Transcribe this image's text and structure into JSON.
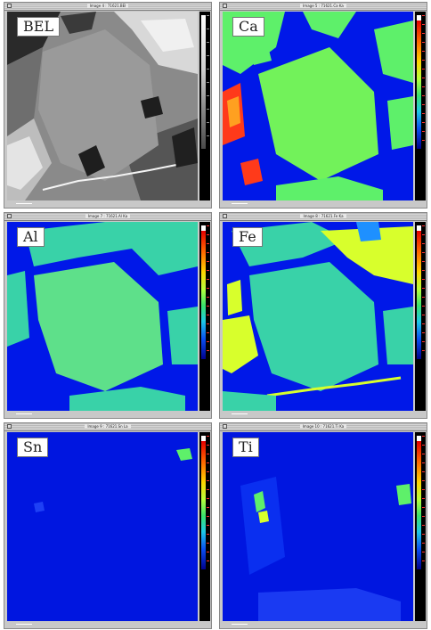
{
  "panels": [
    {
      "title": "Image 4 : 71621.BEI",
      "label": "BEL",
      "colormap": "gray"
    },
    {
      "title": "Image 5 : 71621.Ca Ka",
      "label": "Ca",
      "colormap": "color"
    },
    {
      "title": "Image 7 : 71621.Al Ka",
      "label": "Al",
      "colormap": "color"
    },
    {
      "title": "Image 8 : 71621.Fe Ka",
      "label": "Fe",
      "colormap": "color"
    },
    {
      "title": "Image 9 : 71621.Sn La",
      "label": "Sn",
      "colormap": "color"
    },
    {
      "title": "Image 10 : 71621.Ti Ka",
      "label": "Ti",
      "colormap": "color"
    }
  ],
  "colors": {
    "background_blue": "#0018e8",
    "mineral_green": "#5ef06a",
    "aluminum_cyan": "#39d2a8",
    "iron_yellow": "#d8ff2c",
    "hot_red": "#ff3a1a",
    "bse_gray": "#8c8c8c"
  }
}
